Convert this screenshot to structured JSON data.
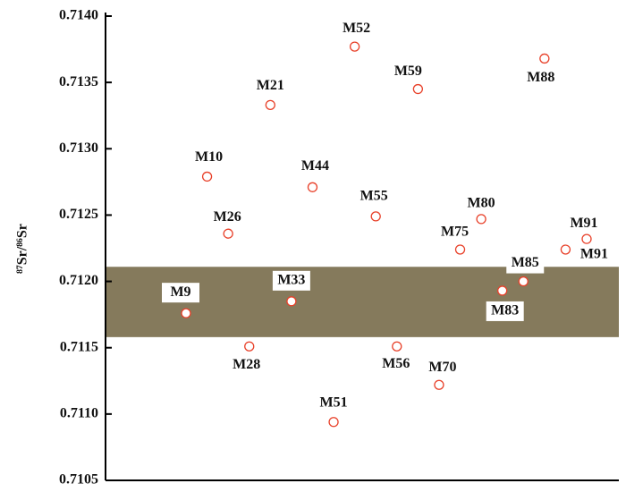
{
  "chart_data": {
    "type": "scatter",
    "y_label": "⁸⁷Sr/⁸⁶Sr",
    "categories": [
      "M9",
      "M10",
      "M26",
      "M28",
      "M21",
      "M33",
      "M44",
      "M51",
      "M52",
      "M55",
      "M56",
      "M59",
      "M70",
      "M75",
      "M80",
      "M83",
      "M85",
      "M88",
      "M91",
      "M91"
    ],
    "values": [
      0.71176,
      0.71279,
      0.71236,
      0.71151,
      0.71333,
      0.71185,
      0.71271,
      0.71094,
      0.71377,
      0.71249,
      0.71151,
      0.71345,
      0.71122,
      0.71224,
      0.71247,
      0.71193,
      0.712,
      0.71368,
      0.71224,
      0.71232
    ],
    "color": "#e8412a",
    "band": [
      0.71158,
      0.71211
    ],
    "band_color": "#857a5c",
    "ylim": [
      0.7105,
      0.714
    ],
    "yticks": [
      {
        "value": 0.7105,
        "label": "0.7105"
      },
      {
        "value": 0.711,
        "label": "0.7110"
      },
      {
        "value": 0.7115,
        "label": "0.7115"
      },
      {
        "value": 0.712,
        "label": "0.7120"
      },
      {
        "value": 0.7125,
        "label": "0.7125"
      },
      {
        "value": 0.713,
        "label": "0.7130"
      },
      {
        "value": 0.7135,
        "label": "0.7135"
      },
      {
        "value": 0.714,
        "label": "0.7140"
      }
    ],
    "grid": false
  }
}
